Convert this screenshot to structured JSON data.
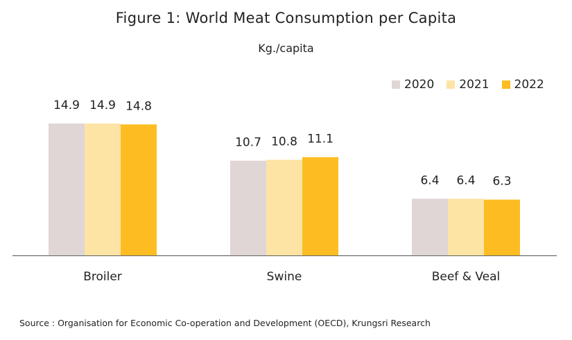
{
  "title": "Figure 1: World  Meat Consumption per Capita",
  "subtitle": "Kg./capita",
  "source": "Source : Organisation for Economic Co-operation and Development (OECD), Krungsri Research",
  "chart_data": {
    "type": "bar",
    "title": "Figure 1: World  Meat Consumption per Capita",
    "ylabel": "Kg./capita",
    "xlabel": "",
    "categories": [
      "Broiler",
      "Swine",
      "Beef & Veal"
    ],
    "series": [
      {
        "name": "2020",
        "values": [
          14.9,
          10.7,
          6.4
        ],
        "color": "#e0d6d6"
      },
      {
        "name": "2021",
        "values": [
          14.9,
          10.8,
          6.4
        ],
        "color": "#fde4a4"
      },
      {
        "name": "2022",
        "values": [
          14.8,
          11.1,
          6.3
        ],
        "color": "#fdbd22"
      }
    ],
    "ylim": [
      0,
      15
    ],
    "grid": false,
    "legend": "top-right"
  }
}
